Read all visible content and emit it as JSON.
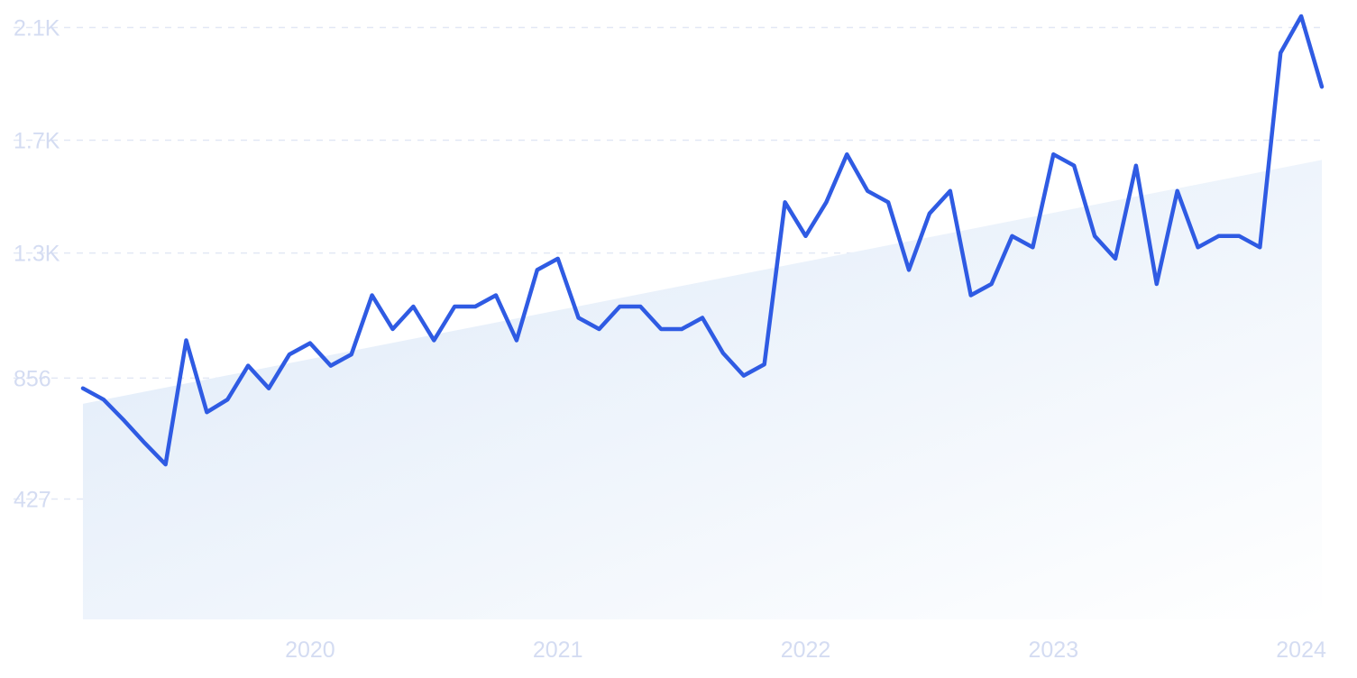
{
  "chart_data": {
    "type": "line",
    "title": "",
    "xlabel": "",
    "ylabel": "",
    "x_start": "2019-02",
    "x_ticks": [
      "2020",
      "2021",
      "2022",
      "2023",
      "2024"
    ],
    "y_ticks": [
      "427",
      "856",
      "1.3K",
      "1.7K",
      "2.1K"
    ],
    "ylim": [
      0,
      2140
    ],
    "grid": true,
    "trend_area": {
      "start": 765,
      "end": 1630
    },
    "colors": {
      "line": "#2f5be3",
      "grid": "#e2e8f5",
      "tick": "#d4dcf2",
      "area_from": "#dde9f8",
      "area_to": "#ffffff"
    },
    "series": [
      {
        "values": [
          820,
          780,
          705,
          625,
          550,
          990,
          735,
          780,
          900,
          820,
          940,
          980,
          900,
          940,
          1150,
          1030,
          1110,
          990,
          1110,
          1110,
          1150,
          990,
          1240,
          1280,
          1070,
          1030,
          1110,
          1110,
          1030,
          1030,
          1070,
          945,
          865,
          905,
          1480,
          1360,
          1480,
          1650,
          1520,
          1480,
          1240,
          1440,
          1520,
          1150,
          1190,
          1360,
          1320,
          1650,
          1610,
          1360,
          1280,
          1610,
          1190,
          1520,
          1320,
          1360,
          1360,
          1320,
          2010,
          2140,
          1890
        ]
      }
    ]
  }
}
